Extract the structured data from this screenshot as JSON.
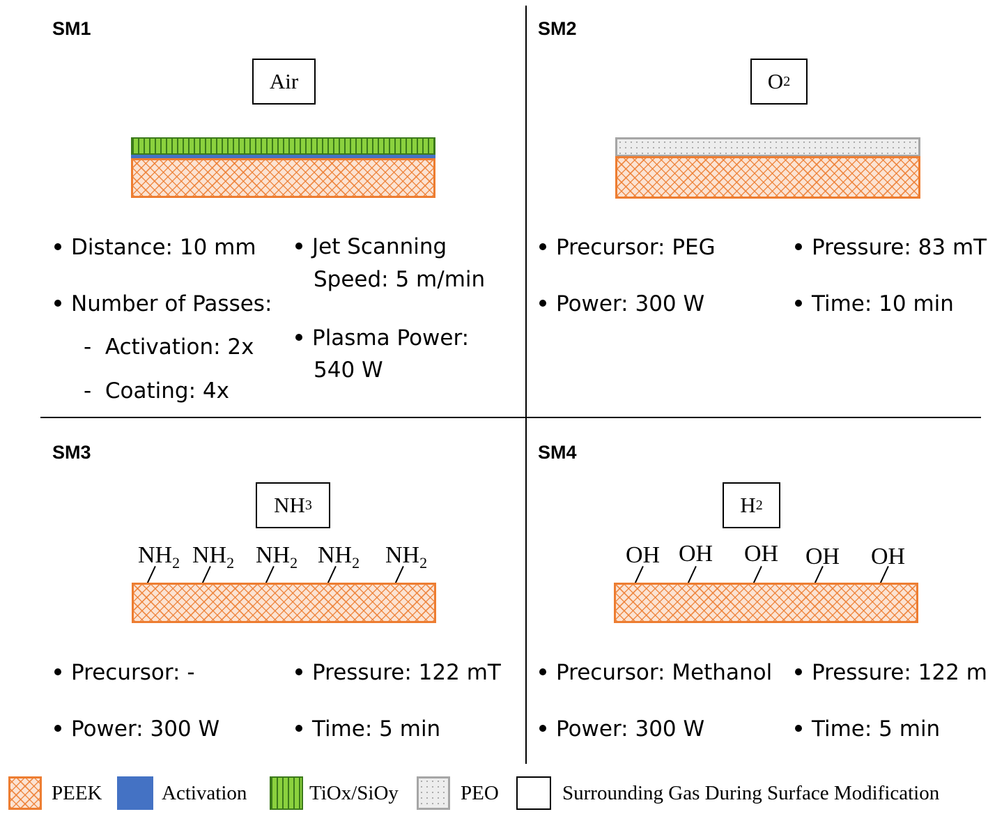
{
  "panels": {
    "sm1": {
      "title": "SM1",
      "gas": "Air",
      "bullets": {
        "distance": "Distance: 10 mm",
        "passes": "Number of Passes:",
        "activation": "Activation: 2x",
        "coating": "Coating: 4x",
        "jet_line1": "Jet Scanning",
        "jet_line2": "Speed: 5 m/min",
        "power_line1": "Plasma Power:",
        "power_line2": "540 W"
      }
    },
    "sm2": {
      "title": "SM2",
      "gas_base": "O",
      "gas_sub": "2",
      "bullets": {
        "precursor": "Precursor: PEG",
        "pressure": "Pressure: 83 mT",
        "power": "Power: 300 W",
        "time": "Time: 10 min"
      }
    },
    "sm3": {
      "title": "SM3",
      "gas_base": "NH",
      "gas_sub": "3",
      "group_base": "NH",
      "group_sub": "2",
      "bullets": {
        "precursor": "Precursor: -",
        "pressure": "Pressure: 122 mT",
        "power": "Power: 300 W",
        "time": "Time: 5 min"
      }
    },
    "sm4": {
      "title": "SM4",
      "gas_base": "H",
      "gas_sub": "2",
      "group": "OH",
      "bullets": {
        "precursor": "Precursor: Methanol",
        "pressure": "Pressure: 122 m",
        "power": "Power: 300 W",
        "time": "Time: 5 min"
      }
    }
  },
  "legend": {
    "peek": "PEEK",
    "activation": "Activation",
    "tiox": "TiOx/SiOy",
    "peo": "PEO",
    "gas": "Surrounding Gas During Surface Modification"
  },
  "colors": {
    "peek": "#ED7D31",
    "activation": "#4472C4",
    "tiox": "#8BD13E",
    "peo": "#A6A6A6"
  }
}
